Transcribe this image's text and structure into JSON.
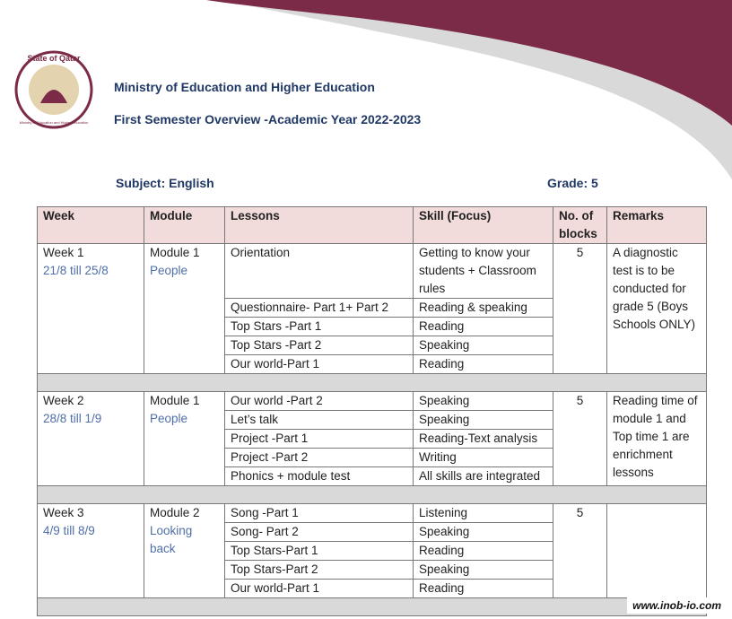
{
  "logo": {
    "top": "State of Qatar",
    "bottom": "Ministry of Education and Higher Education"
  },
  "header": {
    "title": "Ministry of Education and Higher Education",
    "subtitle": "First Semester Overview -Academic Year 2022-2023"
  },
  "subject": "Subject: English",
  "grade": "Grade: 5",
  "table": {
    "columns": [
      "Week",
      "Module",
      "Lessons",
      "Skill (Focus)",
      "No. of blocks",
      "Remarks"
    ],
    "weeks": [
      {
        "week": "Week 1",
        "dates": "21/8 till 25/8",
        "module": "Module 1",
        "module_name": "People",
        "blocks": 5,
        "remarks": "A diagnostic test is to be conducted for grade 5 (Boys Schools ONLY)",
        "lessons": [
          {
            "lesson": "Orientation",
            "skill": "Getting to know your students + Classroom rules"
          },
          {
            "lesson": "Questionnaire- Part 1+ Part 2",
            "skill": "Reading & speaking"
          },
          {
            "lesson": "Top Stars -Part 1",
            "skill": "Reading"
          },
          {
            "lesson": "Top Stars -Part 2",
            "skill": "Speaking"
          },
          {
            "lesson": "Our world-Part 1",
            "skill": "Reading"
          }
        ]
      },
      {
        "week": "Week 2",
        "dates": "28/8 till 1/9",
        "module": "Module 1",
        "module_name": "People",
        "blocks": 5,
        "remarks": "Reading time of module 1 and Top time 1 are enrichment lessons",
        "lessons": [
          {
            "lesson": "Our world -Part 2",
            "skill": "Speaking"
          },
          {
            "lesson": "Let’s talk",
            "skill": "Speaking"
          },
          {
            "lesson": "Project -Part 1",
            "skill": "Reading-Text analysis"
          },
          {
            "lesson": "Project -Part 2",
            "skill": "Writing"
          },
          {
            "lesson": "Phonics + module test",
            "skill": "All skills are integrated"
          }
        ]
      },
      {
        "week": "Week 3",
        "dates": "4/9 till 8/9",
        "module": "Module 2",
        "module_name": "Looking back",
        "blocks": 5,
        "remarks": null,
        "lessons": [
          {
            "lesson": "Song -Part 1",
            "skill": "Listening"
          },
          {
            "lesson": "Song- Part 2",
            "skill": "Speaking"
          },
          {
            "lesson": "Top Stars-Part 1",
            "skill": "Reading"
          },
          {
            "lesson": "Top Stars-Part 2",
            "skill": "Speaking"
          },
          {
            "lesson": "Our world-Part 1",
            "skill": "Reading"
          }
        ]
      }
    ]
  },
  "watermark": "www.inob-io.com"
}
